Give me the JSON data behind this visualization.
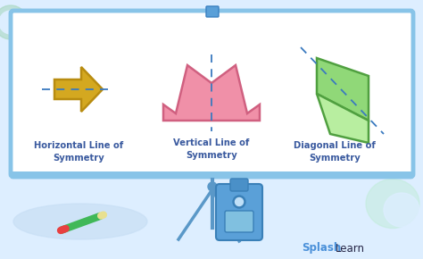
{
  "bg_color": "#ddeeff",
  "board_bg": "#ffffff",
  "board_border": "#88c4e8",
  "arrow_fill": "#d4a820",
  "arrow_edge": "#b88c10",
  "crown_fill": "#f090a8",
  "crown_edge": "#d06080",
  "fold_fill_top": "#90d878",
  "fold_fill_bottom": "#b8eea0",
  "fold_edge": "#50a040",
  "sym_line_color": "#3a7abf",
  "labels": [
    "Horizontal Line of\nSymmetry",
    "Vertical Line of\nSymmetry",
    "Diagonal Line of\nSymmetry"
  ],
  "label_color": "#3a5a9f",
  "label_fontsize": 7.2,
  "splash_color": "#4a90d9",
  "learn_color": "#222244"
}
